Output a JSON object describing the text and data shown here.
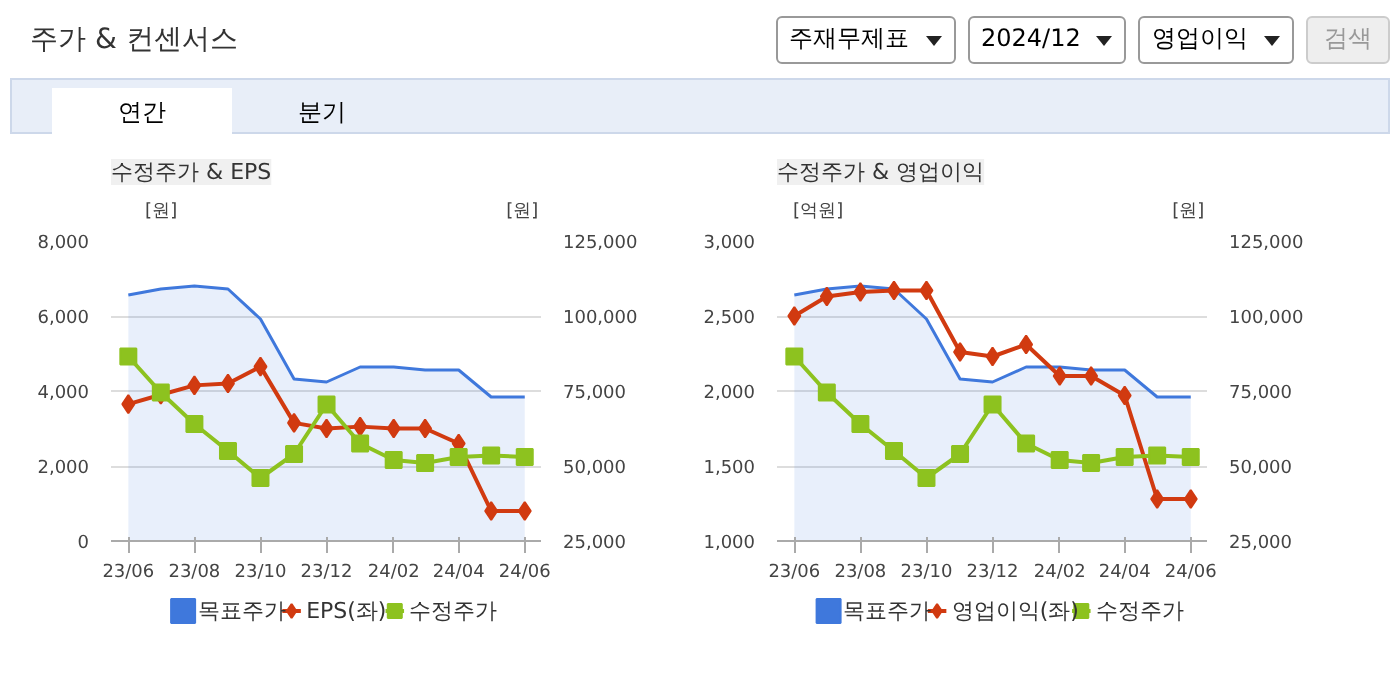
{
  "chart_data": [
    {
      "type": "other",
      "title": "주가 & 컨센서스",
      "annotations": [
        "주재무제표",
        "2024/12",
        "영업이익",
        "검색",
        "연간",
        "분기"
      ]
    },
    {
      "type": "line",
      "title": "수정주가 & EPS",
      "ylabel": "[원]",
      "y2label": "[원]",
      "x": [
        "2023-06",
        "2023-07",
        "2023-08",
        "2023-09",
        "2023-10",
        "2023-11",
        "2023-12",
        "2024-01",
        "2024-02",
        "2024-03",
        "2024-04",
        "2024-05",
        "2024-06"
      ],
      "series": [
        {
          "name": "목표주가",
          "type": "area",
          "axis": "y2",
          "color": "#3f78dc",
          "marker": "none",
          "values": [
            107000,
            109000,
            110000,
            109000,
            99000,
            79000,
            78000,
            83000,
            83000,
            82000,
            82000,
            73000,
            73000
          ]
        },
        {
          "name": "EPS(좌)",
          "type": "line",
          "color": "#d13a10",
          "marker": "diamond",
          "values": [
            3650,
            3900,
            4150,
            4200,
            4650,
            3150,
            3000,
            3050,
            3000,
            3000,
            2600,
            800,
            800
          ]
        },
        {
          "name": "수정주가",
          "type": "line",
          "axis": "y2",
          "color": "#8dc21f",
          "marker": "square",
          "values": [
            86500,
            74500,
            64000,
            55000,
            46000,
            54000,
            70500,
            57500,
            52000,
            51000,
            53000,
            53500,
            53000
          ]
        }
      ],
      "xlim": [
        "2023-05-16",
        "2024-06-16"
      ],
      "xticks": [
        {
          "value": "2023-06",
          "label": "23/06"
        },
        {
          "value": "2023-08",
          "label": "23/08"
        },
        {
          "value": "2023-10",
          "label": "23/10"
        },
        {
          "value": "2023-12",
          "label": "23/12"
        },
        {
          "value": "2024-02",
          "label": "24/02"
        },
        {
          "value": "2024-04",
          "label": "24/04"
        },
        {
          "value": "2024-06",
          "label": "24/06"
        }
      ],
      "ylim": [
        0,
        8000
      ],
      "yticks": [
        0,
        {
          "value": 2000,
          "label": "2,000"
        },
        {
          "value": 4000,
          "label": "4,000"
        },
        {
          "value": 6000,
          "label": "6,000"
        },
        {
          "value": 8000,
          "label": "8,000"
        }
      ],
      "y2lim": [
        25000,
        125000
      ],
      "y2ticks": [
        {
          "value": 25000,
          "label": "25,000"
        },
        {
          "value": 50000,
          "label": "50,000"
        },
        {
          "value": 75000,
          "label": "75,000"
        },
        {
          "value": 100000,
          "label": "100,000"
        },
        {
          "value": 125000,
          "label": "125,000"
        }
      ],
      "grid": "y",
      "legend": "bottom"
    },
    {
      "type": "line",
      "title": "수정주가 & 영업이익",
      "ylabel": "[억원]",
      "y2label": "[원]",
      "x": [
        "2023-06",
        "2023-07",
        "2023-08",
        "2023-09",
        "2023-10",
        "2023-11",
        "2023-12",
        "2024-01",
        "2024-02",
        "2024-03",
        "2024-04",
        "2024-05",
        "2024-06"
      ],
      "series": [
        {
          "name": "목표주가",
          "type": "area",
          "axis": "y2",
          "color": "#3f78dc",
          "marker": "none",
          "values": [
            107000,
            109000,
            110000,
            109000,
            99000,
            79000,
            78000,
            83000,
            83000,
            82000,
            82000,
            73000,
            73000
          ]
        },
        {
          "name": "영업이익(좌)",
          "type": "line",
          "color": "#d13a10",
          "marker": "diamond",
          "values": [
            2500,
            2630,
            2660,
            2670,
            2670,
            2260,
            2230,
            2310,
            2100,
            2100,
            1970,
            1280,
            1280
          ]
        },
        {
          "name": "수정주가",
          "type": "line",
          "axis": "y2",
          "color": "#8dc21f",
          "marker": "square",
          "values": [
            86500,
            74500,
            64000,
            55000,
            46000,
            54000,
            70500,
            57500,
            52000,
            51000,
            53000,
            53500,
            53000
          ]
        }
      ],
      "xlim": [
        "2023-05-16",
        "2024-06-16"
      ],
      "xticks": [
        {
          "value": "2023-06",
          "label": "23/06"
        },
        {
          "value": "2023-08",
          "label": "23/08"
        },
        {
          "value": "2023-10",
          "label": "23/10"
        },
        {
          "value": "2023-12",
          "label": "23/12"
        },
        {
          "value": "2024-02",
          "label": "24/02"
        },
        {
          "value": "2024-04",
          "label": "24/04"
        },
        {
          "value": "2024-06",
          "label": "24/06"
        }
      ],
      "ylim": [
        1000,
        3000
      ],
      "yticks": [
        {
          "value": 1000,
          "label": "1,000"
        },
        {
          "value": 1500,
          "label": "1,500"
        },
        {
          "value": 2000,
          "label": "2,000"
        },
        {
          "value": 2500,
          "label": "2,500"
        },
        {
          "value": 3000,
          "label": "3,000"
        }
      ],
      "y2lim": [
        25000,
        125000
      ],
      "y2ticks": [
        {
          "value": 25000,
          "label": "25,000"
        },
        {
          "value": 50000,
          "label": "50,000"
        },
        {
          "value": 75000,
          "label": "75,000"
        },
        {
          "value": 100000,
          "label": "100,000"
        },
        {
          "value": 125000,
          "label": "125,000"
        }
      ],
      "grid": "y",
      "legend": "bottom"
    }
  ]
}
